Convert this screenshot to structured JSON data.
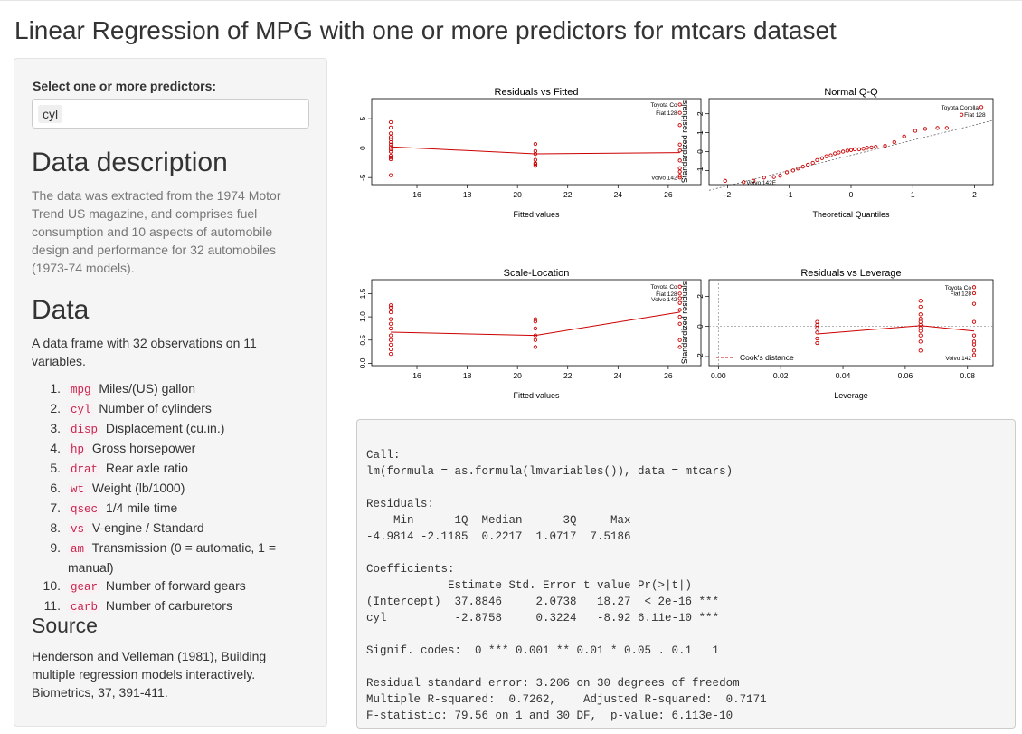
{
  "page_title": "Linear Regression of MPG with one or more predictors for mtcars dataset",
  "sidebar": {
    "select_label": "Select one or more predictors:",
    "selected": [
      "cyl"
    ],
    "description_heading": "Data description",
    "description_text": "The data was extracted from the 1974 Motor Trend US magazine, and comprises fuel consumption and 10 aspects of automobile design and performance for 32 automobiles (1973-74 models).",
    "data_heading": "Data",
    "data_text": "A data frame with 32 observations on 11 variables.",
    "variables": [
      {
        "num": "1.",
        "code": "mpg",
        "desc": "Miles/(US) gallon"
      },
      {
        "num": "2.",
        "code": "cyl",
        "desc": "Number of cylinders"
      },
      {
        "num": "3.",
        "code": "disp",
        "desc": "Displacement (cu.in.)"
      },
      {
        "num": "4.",
        "code": "hp",
        "desc": "Gross horsepower"
      },
      {
        "num": "5.",
        "code": "drat",
        "desc": "Rear axle ratio"
      },
      {
        "num": "6.",
        "code": "wt",
        "desc": "Weight (lb/1000)"
      },
      {
        "num": "7.",
        "code": "qsec",
        "desc": "1/4 mile time"
      },
      {
        "num": "8.",
        "code": "vs",
        "desc": "V-engine / Standard"
      },
      {
        "num": "9.",
        "code": "am",
        "desc": "Transmission (0 = automatic, 1 = manual)"
      },
      {
        "num": "10.",
        "code": "gear",
        "desc": "Number of forward gears"
      },
      {
        "num": "11.",
        "code": "carb",
        "desc": "Number of carburetors"
      }
    ],
    "source_heading": "Source",
    "source_text": "Henderson and Velleman (1981), Building multiple regression models interactively. Biometrics, 37, 391-411."
  },
  "colors": {
    "points": "#cc0000",
    "smoother": "#cc0000",
    "reference": "#888888"
  },
  "chart_data": [
    {
      "type": "scatter",
      "title": "Residuals vs Fitted",
      "xlabel": "Fitted values",
      "ylabel": "Residuals",
      "xlim": [
        14.2,
        27.3
      ],
      "ylim": [
        -6.2,
        8.4
      ],
      "xticks": [
        16,
        18,
        20,
        22,
        24,
        26
      ],
      "yticks": [
        -5,
        0,
        5
      ],
      "refline": {
        "kind": "h",
        "value": 0
      },
      "smoother": [
        [
          14.96,
          0.22
        ],
        [
          20.71,
          -0.97
        ],
        [
          26.46,
          -0.76
        ]
      ],
      "points": [
        [
          14.96,
          4.4
        ],
        [
          14.96,
          3.5
        ],
        [
          14.96,
          2.5
        ],
        [
          14.96,
          1.9
        ],
        [
          14.96,
          1.5
        ],
        [
          14.96,
          1.0
        ],
        [
          14.96,
          0.6
        ],
        [
          14.96,
          0.2
        ],
        [
          14.96,
          -0.2
        ],
        [
          14.96,
          -0.6
        ],
        [
          14.96,
          -1.3
        ],
        [
          14.96,
          -1.6
        ],
        [
          14.96,
          -1.9
        ],
        [
          14.96,
          -4.6
        ],
        [
          20.71,
          0.7
        ],
        [
          20.71,
          -0.5
        ],
        [
          20.71,
          -1.0
        ],
        [
          20.71,
          -2.0
        ],
        [
          20.71,
          -2.6
        ],
        [
          20.71,
          -2.7
        ],
        [
          20.71,
          -3.0
        ],
        [
          26.46,
          7.4
        ],
        [
          26.46,
          6.0
        ],
        [
          26.46,
          3.9
        ],
        [
          26.46,
          0.6
        ],
        [
          26.46,
          -0.4
        ],
        [
          26.46,
          -2.1
        ],
        [
          26.46,
          -3.4
        ],
        [
          26.46,
          -4.0
        ],
        [
          26.46,
          -4.7
        ],
        [
          26.46,
          -5.0
        ]
      ],
      "annotations": [
        {
          "text": "Toyota Co",
          "x": 26.46,
          "y": 7.4
        },
        {
          "text": "Fiat 128",
          "x": 26.46,
          "y": 6.0
        },
        {
          "text": "Volvo 142",
          "x": 26.46,
          "y": -5.0
        }
      ]
    },
    {
      "type": "scatter",
      "title": "Normal Q-Q",
      "xlabel": "Theoretical Quantiles",
      "ylabel": "Standardized residuals",
      "xlim": [
        -2.3,
        2.3
      ],
      "ylim": [
        -1.75,
        2.8
      ],
      "xticks": [
        -2,
        -1,
        0,
        1,
        2
      ],
      "yticks": [
        -1,
        0,
        1,
        2
      ],
      "refline": {
        "kind": "abline",
        "from": [
          -2.3,
          -2.05
        ],
        "to": [
          2.3,
          1.65
        ]
      },
      "points": [
        [
          -2.04,
          -1.55
        ],
        [
          -1.74,
          -1.62
        ],
        [
          -1.58,
          -1.55
        ],
        [
          -1.41,
          -1.38
        ],
        [
          -1.25,
          -1.35
        ],
        [
          -1.15,
          -1.28
        ],
        [
          -1.04,
          -1.1
        ],
        [
          -0.94,
          -1.0
        ],
        [
          -0.86,
          -0.9
        ],
        [
          -0.78,
          -0.8
        ],
        [
          -0.7,
          -0.7
        ],
        [
          -0.62,
          -0.6
        ],
        [
          -0.55,
          -0.45
        ],
        [
          -0.47,
          -0.35
        ],
        [
          -0.4,
          -0.25
        ],
        [
          -0.33,
          -0.2
        ],
        [
          -0.26,
          -0.1
        ],
        [
          -0.2,
          -0.05
        ],
        [
          -0.13,
          0.0
        ],
        [
          -0.06,
          0.05
        ],
        [
          0.0,
          0.08
        ],
        [
          0.06,
          0.12
        ],
        [
          0.13,
          0.12
        ],
        [
          0.2,
          0.15
        ],
        [
          0.26,
          0.2
        ],
        [
          0.33,
          0.22
        ],
        [
          0.4,
          0.25
        ],
        [
          0.55,
          0.3
        ],
        [
          0.7,
          0.5
        ],
        [
          0.86,
          0.8
        ],
        [
          1.04,
          1.1
        ],
        [
          1.2,
          1.2
        ],
        [
          1.4,
          1.25
        ],
        [
          1.55,
          1.25
        ],
        [
          1.79,
          1.95
        ],
        [
          2.11,
          2.35
        ]
      ],
      "annotations": [
        {
          "text": "Toyota Corolla",
          "x": 2.11,
          "y": 2.35
        },
        {
          "text": "Fiat 128",
          "x": 1.79,
          "y": 1.95
        },
        {
          "text": "Volvo 142E",
          "x": -1.74,
          "y": -1.62
        }
      ]
    },
    {
      "type": "scatter",
      "title": "Scale-Location",
      "xlabel": "Fitted values",
      "ylabel": "√Standardized residuals",
      "xlim": [
        14.2,
        27.3
      ],
      "ylim": [
        -0.05,
        1.8
      ],
      "xticks": [
        16,
        18,
        20,
        22,
        24,
        26
      ],
      "yticks": [
        0.0,
        0.5,
        1.0,
        1.5
      ],
      "ytick_labels": [
        "0.0",
        "0.5",
        "1.0",
        "1.5"
      ],
      "smoother": [
        [
          14.96,
          0.67
        ],
        [
          20.71,
          0.6
        ],
        [
          26.46,
          1.1
        ]
      ],
      "points": [
        [
          14.96,
          1.25
        ],
        [
          14.96,
          1.2
        ],
        [
          14.96,
          1.1
        ],
        [
          14.96,
          0.95
        ],
        [
          14.96,
          0.85
        ],
        [
          14.96,
          0.75
        ],
        [
          14.96,
          0.6
        ],
        [
          14.96,
          0.5
        ],
        [
          14.96,
          0.4
        ],
        [
          14.96,
          0.3
        ],
        [
          14.96,
          0.2
        ],
        [
          20.71,
          0.95
        ],
        [
          20.71,
          0.9
        ],
        [
          20.71,
          0.75
        ],
        [
          20.71,
          0.6
        ],
        [
          20.71,
          0.5
        ],
        [
          20.71,
          0.35
        ],
        [
          26.46,
          1.65
        ],
        [
          26.46,
          1.5
        ],
        [
          26.46,
          1.4
        ],
        [
          26.46,
          1.3
        ],
        [
          26.46,
          1.15
        ],
        [
          26.46,
          1.0
        ],
        [
          26.46,
          0.85
        ],
        [
          26.46,
          0.5
        ],
        [
          26.46,
          0.35
        ]
      ],
      "annotations": [
        {
          "text": "Toyota Co",
          "x": 26.46,
          "y": 1.65
        },
        {
          "text": "Fiat 128",
          "x": 26.46,
          "y": 1.5
        },
        {
          "text": "Volvo 142",
          "x": 26.46,
          "y": 1.38
        }
      ]
    },
    {
      "type": "scatter",
      "title": "Residuals vs Leverage",
      "xlabel": "Leverage",
      "ylabel": "Standardized residuals",
      "xlim": [
        -0.003,
        0.0882
      ],
      "ylim": [
        -2.6,
        3.1
      ],
      "xticks": [
        0.0,
        0.02,
        0.04,
        0.06,
        0.08
      ],
      "xtick_labels": [
        "0.00",
        "0.02",
        "0.04",
        "0.06",
        "0.08"
      ],
      "yticks": [
        -2,
        0,
        2
      ],
      "refline": {
        "kind": "h",
        "value": 0
      },
      "vline": 0,
      "smoother": [
        [
          0.0317,
          -0.5
        ],
        [
          0.0649,
          0.05
        ],
        [
          0.0821,
          -0.3
        ]
      ],
      "points": [
        [
          0.0317,
          0.3
        ],
        [
          0.0317,
          0.1
        ],
        [
          0.0317,
          -0.1
        ],
        [
          0.0317,
          -0.4
        ],
        [
          0.0317,
          -0.8
        ],
        [
          0.0317,
          -1.1
        ],
        [
          0.0649,
          1.7
        ],
        [
          0.0649,
          1.3
        ],
        [
          0.0649,
          0.8
        ],
        [
          0.0649,
          0.5
        ],
        [
          0.0649,
          0.3
        ],
        [
          0.0649,
          0.1
        ],
        [
          0.0649,
          -0.1
        ],
        [
          0.0649,
          -0.3
        ],
        [
          0.0649,
          -0.6
        ],
        [
          0.0649,
          -1.0
        ],
        [
          0.0649,
          -1.6
        ],
        [
          0.0821,
          2.6
        ],
        [
          0.0821,
          2.2
        ],
        [
          0.0821,
          1.5
        ],
        [
          0.0821,
          0.3
        ],
        [
          0.0821,
          -0.6
        ],
        [
          0.0821,
          -1.0
        ],
        [
          0.0821,
          -1.2
        ],
        [
          0.0821,
          -1.6
        ],
        [
          0.0821,
          -1.9
        ]
      ],
      "legend": {
        "label": "Cook's distance",
        "position": "bottom-left"
      },
      "annotations": [
        {
          "text": "Toyota Co",
          "x": 0.0821,
          "y": 2.6
        },
        {
          "text": "Fiat 128",
          "x": 0.0821,
          "y": 2.2
        },
        {
          "text": "Volvo 142",
          "x": 0.0821,
          "y": -2.1
        }
      ]
    }
  ],
  "output_lines": [
    "Call:",
    "lm(formula = as.formula(lmvariables()), data = mtcars)",
    "",
    "Residuals:",
    "    Min      1Q  Median      3Q     Max ",
    "-4.9814 -2.1185  0.2217  1.0717  7.5186 ",
    "",
    "Coefficients:",
    "            Estimate Std. Error t value Pr(>|t|)    ",
    "(Intercept)  37.8846     2.0738   18.27  < 2e-16 ***",
    "cyl          -2.8758     0.3224   -8.92 6.11e-10 ***",
    "---",
    "Signif. codes:  0 *** 0.001 ** 0.01 * 0.05 . 0.1   1",
    "",
    "Residual standard error: 3.206 on 30 degrees of freedom",
    "Multiple R-squared:  0.7262,\tAdjusted R-squared:  0.7171 ",
    "F-statistic: 79.56 on 1 and 30 DF,  p-value: 6.113e-10"
  ]
}
